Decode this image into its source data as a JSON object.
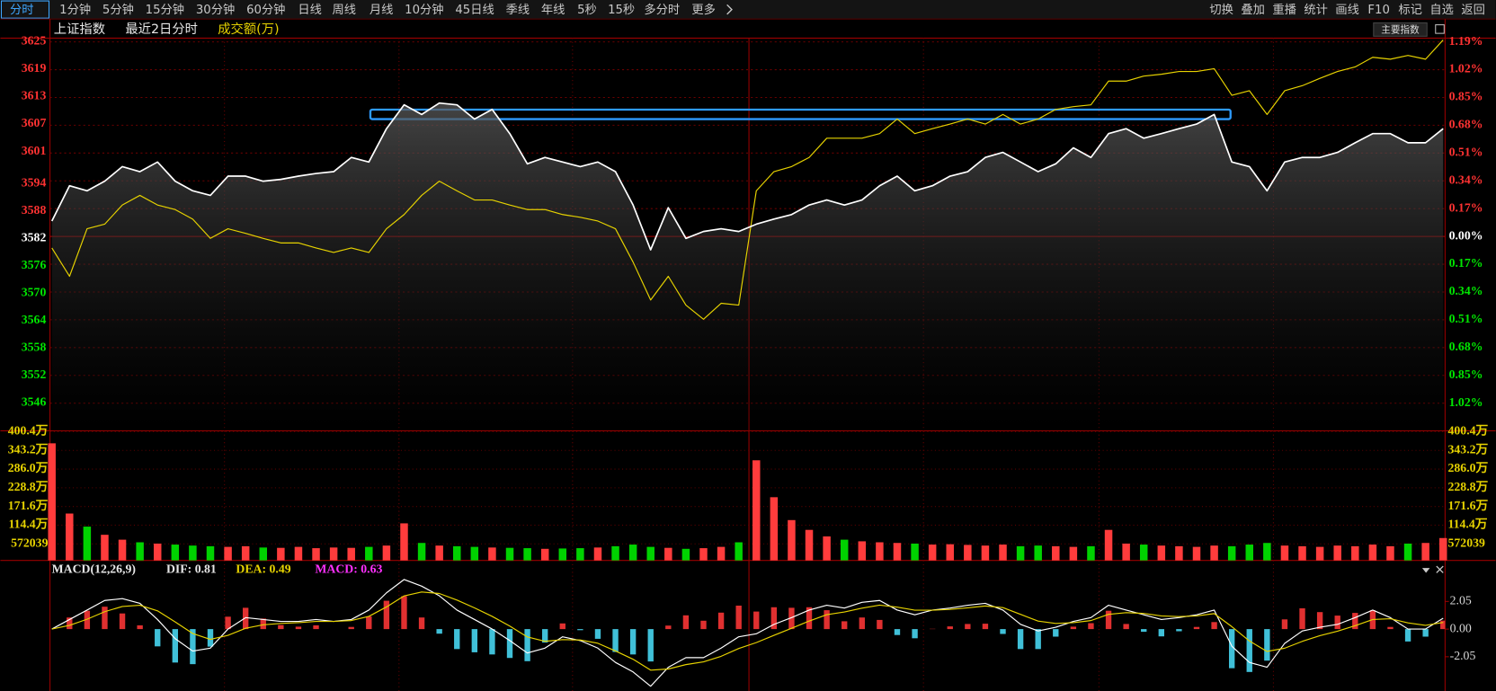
{
  "toolbar": {
    "left": [
      "分时",
      "1分钟",
      "5分钟",
      "15分钟",
      "30分钟",
      "60分钟",
      "日线",
      "周线",
      "月线",
      "10分钟",
      "45日线",
      "季线",
      "年线",
      "5秒",
      "15秒",
      "多分时",
      "更多"
    ],
    "right": [
      "切换",
      "叠加",
      "重播",
      "统计",
      "画线",
      "F10",
      "标记",
      "自选",
      "返回"
    ]
  },
  "header": {
    "button": "主要指数"
  },
  "chart_data": [
    {
      "type": "line",
      "title": "上证指数",
      "subtitle": "最近2日分时",
      "up_color": "#ff3232",
      "flat_color": "#ffffff",
      "down_color": "#00e600",
      "series": [
        {
          "color": "#ffffff",
          "values": [
            3585.8,
            3593.5,
            3592.4,
            3594.5,
            3597.7,
            3596.6,
            3598.7,
            3594.5,
            3592.4,
            3591.4,
            3595.6,
            3595.6,
            3594.5,
            3594.9,
            3595.6,
            3596.2,
            3596.6,
            3599.7,
            3598.7,
            3606.0,
            3611.2,
            3609.1,
            3611.6,
            3611.2,
            3608.1,
            3610.2,
            3604.9,
            3598.3,
            3599.7,
            3598.7,
            3597.7,
            3598.7,
            3596.6,
            3589.3,
            3579.5,
            3588.7,
            3582.0,
            3583.5,
            3584.1,
            3583.5,
            3585.1,
            3586.2,
            3587.2,
            3589.3,
            3590.4,
            3589.3,
            3590.4,
            3593.5,
            3595.6,
            3592.4,
            3593.5,
            3595.6,
            3596.6,
            3599.7,
            3600.8,
            3598.7,
            3596.6,
            3598.3,
            3601.8,
            3599.7,
            3604.9,
            3606.0,
            3603.9,
            3604.9,
            3606.0,
            3607.0,
            3609.1,
            3598.7,
            3597.7,
            3592.4,
            3598.7,
            3599.7,
            3599.7,
            3600.8,
            3602.9,
            3604.9,
            3604.9,
            3602.9,
            3602.9,
            3606.0
          ]
        },
        {
          "name": "成交额(万)",
          "color": "#e6d200",
          "values": [
            3579.9,
            3573.7,
            3584.1,
            3585.1,
            3589.3,
            3591.4,
            3589.3,
            3588.3,
            3586.2,
            3582.0,
            3584.1,
            3583.1,
            3582.0,
            3581.0,
            3581.0,
            3579.9,
            3578.9,
            3579.9,
            3578.9,
            3584.1,
            3587.2,
            3591.4,
            3594.5,
            3592.4,
            3590.4,
            3590.4,
            3589.3,
            3588.3,
            3588.3,
            3587.2,
            3586.6,
            3585.8,
            3584.1,
            3576.8,
            3568.5,
            3573.7,
            3567.4,
            3564.3,
            3567.8,
            3567.4,
            3592.4,
            3596.6,
            3597.7,
            3599.7,
            3603.9,
            3603.9,
            3603.9,
            3604.9,
            3608.1,
            3604.9,
            3606.0,
            3607.0,
            3608.1,
            3607.0,
            3609.1,
            3607.0,
            3608.1,
            3610.2,
            3610.8,
            3611.2,
            3616.4,
            3616.4,
            3617.5,
            3617.9,
            3618.5,
            3618.5,
            3619.1,
            3613.3,
            3614.3,
            3609.1,
            3614.3,
            3615.4,
            3617.0,
            3618.5,
            3619.5,
            3621.6,
            3621.2,
            3622.0,
            3621.2,
            3625.4
          ]
        }
      ],
      "ylim": [
        3539.9,
        3625.8
      ],
      "yticks": [
        3625,
        3619,
        3613,
        3607,
        3601,
        3594,
        3588,
        3582,
        3576,
        3570,
        3564,
        3558,
        3552,
        3546
      ],
      "y2lim": [
        -1.189,
        1.213
      ],
      "y2ticks": [
        {
          "value": 1.19,
          "label": "1.19%"
        },
        {
          "value": 1.02,
          "label": "1.02%"
        },
        {
          "value": 0.85,
          "label": "0.85%"
        },
        {
          "value": 0.68,
          "label": "0.68%"
        },
        {
          "value": 0.51,
          "label": "0.51%"
        },
        {
          "value": 0.34,
          "label": "0.34%"
        },
        {
          "value": 0.17,
          "label": "0.17%"
        },
        {
          "value": 0,
          "label": "0.00%"
        },
        {
          "value": -0.17,
          "label": "0.17%"
        },
        {
          "value": -0.34,
          "label": "0.34%"
        },
        {
          "value": -0.51,
          "label": "0.51%"
        },
        {
          "value": -0.68,
          "label": "0.68%"
        },
        {
          "value": -0.85,
          "label": "0.85%"
        },
        {
          "value": -1.02,
          "label": "1.02%"
        }
      ],
      "grid": true
    },
    {
      "type": "bar",
      "up_color": "#ff3c3c",
      "down_color": "#00d200",
      "values": [
        365,
        150,
        110,
        85,
        70,
        62,
        58,
        55,
        52,
        50,
        48,
        50,
        46,
        45,
        48,
        44,
        46,
        45,
        48,
        52,
        120,
        60,
        52,
        50,
        48,
        46,
        45,
        44,
        42,
        43,
        44,
        46,
        50,
        55,
        48,
        45,
        42,
        44,
        48,
        62,
        313,
        200,
        130,
        100,
        80,
        70,
        65,
        62,
        60,
        58,
        55,
        56,
        54,
        52,
        55,
        50,
        52,
        50,
        48,
        50,
        100,
        58,
        55,
        52,
        50,
        48,
        52,
        50,
        55,
        60,
        52,
        50,
        48,
        52,
        50,
        55,
        50,
        58,
        60,
        75
      ],
      "ylim": [
        6.5,
        403.3
      ],
      "yticks": [
        {
          "value": 400.4,
          "label": "400.4万"
        },
        {
          "value": 343.2,
          "label": "343.2万"
        },
        {
          "value": 286.0,
          "label": "286.0万"
        },
        {
          "value": 228.8,
          "label": "228.8万"
        },
        {
          "value": 171.6,
          "label": "171.6万"
        },
        {
          "value": 114.4,
          "label": "114.4万"
        },
        {
          "value": 57.2039,
          "label": "572039"
        }
      ],
      "grid": true
    },
    {
      "type": "macd",
      "legend": [
        {
          "text": "MACD(12,26,9)",
          "color": "#e8e8e8"
        },
        {
          "text": "DIF: 0.81",
          "color": "#e8e8e8"
        },
        {
          "text": "DEA: 0.49",
          "color": "#e6d200"
        },
        {
          "text": "MACD: 0.63",
          "color": "#ff30ff"
        }
      ],
      "series": [
        {
          "color": "#ffffff",
          "values": [
            0,
            0.71,
            1.41,
            2.12,
            2.26,
            1.91,
            0.71,
            -0.71,
            -1.63,
            -1.41,
            0,
            0.85,
            0.71,
            0.57,
            0.57,
            0.71,
            0.57,
            0.71,
            1.41,
            2.69,
            3.68,
            3.18,
            2.47,
            1.41,
            0.71,
            0,
            -0.85,
            -1.77,
            -1.41,
            -0.57,
            -0.85,
            -1.41,
            -2.47,
            -3.18,
            -4.24,
            -2.83,
            -2.12,
            -2.12,
            -1.41,
            -0.57,
            -0.35,
            0.35,
            0.85,
            1.41,
            1.77,
            1.56,
            1.98,
            2.12,
            1.41,
            1.06,
            1.41,
            1.56,
            1.77,
            1.91,
            1.41,
            0.35,
            -0.14,
            0.14,
            0.57,
            0.85,
            1.77,
            1.41,
            1.06,
            0.71,
            0.85,
            1.06,
            1.41,
            -1.27,
            -2.47,
            -2.83,
            -1.06,
            -0.14,
            0.14,
            0.35,
            0.85,
            1.41,
            0.85,
            0,
            0,
            0.81
          ]
        },
        {
          "color": "#e6d200",
          "values": [
            0,
            0.28,
            0.73,
            1.29,
            1.68,
            1.77,
            1.35,
            0.53,
            -0.33,
            -0.76,
            -0.46,
            0.06,
            0.32,
            0.42,
            0.48,
            0.57,
            0.57,
            0.63,
            0.94,
            1.64,
            2.46,
            2.75,
            2.64,
            2.15,
            1.57,
            0.94,
            0.22,
            -0.58,
            -0.91,
            -0.78,
            -0.81,
            -1.05,
            -1.62,
            -2.24,
            -3.04,
            -2.96,
            -2.63,
            -2.43,
            -2.02,
            -1.44,
            -1.0,
            -0.46,
            0.06,
            0.6,
            1.07,
            1.27,
            1.55,
            1.78,
            1.63,
            1.4,
            1.4,
            1.46,
            1.58,
            1.71,
            1.59,
            1.09,
            0.6,
            0.42,
            0.48,
            0.63,
            1.09,
            1.22,
            1.16,
            0.98,
            0.93,
            0.98,
            1.15,
            0.18,
            -0.88,
            -1.66,
            -1.42,
            -0.91,
            -0.49,
            -0.15,
            0.25,
            0.71,
            0.77,
            0.46,
            0.28,
            0.49
          ]
        }
      ],
      "bars": {
        "up_color": "#e03030",
        "down_color": "#40c0d8",
        "values": [
          0,
          0.86,
          1.36,
          1.66,
          1.16,
          0.28,
          -1.28,
          -2.48,
          -2.6,
          -1.3,
          0.92,
          1.58,
          0.78,
          0.3,
          0.18,
          0.28,
          0,
          0.16,
          0.94,
          2.1,
          2.44,
          0.86,
          -0.34,
          -1.48,
          -1.72,
          -1.88,
          -2.14,
          -2.38,
          -1,
          0.42,
          -0.08,
          -0.72,
          -1.7,
          -1.88,
          -2.4,
          0.26,
          1.02,
          0.62,
          1.22,
          1.74,
          1.3,
          1.62,
          1.58,
          1.62,
          1.4,
          0.58,
          0.86,
          0.68,
          -0.44,
          -0.68,
          0.02,
          0.2,
          0.38,
          0.4,
          -0.36,
          -1.48,
          -1.48,
          -0.56,
          0.18,
          0.44,
          1.36,
          0.38,
          -0.2,
          -0.54,
          -0.16,
          0.16,
          0.52,
          -2.9,
          -3.18,
          -2.34,
          0.72,
          1.54,
          1.26,
          1,
          1.2,
          1.4,
          0.16,
          -0.92,
          -0.56,
          0.63
        ]
      },
      "ylim": [
        -4.59,
        4.95
      ],
      "yticks": [
        2.05,
        {
          "value": 0,
          "label": "0.00"
        },
        -2.05
      ]
    }
  ]
}
